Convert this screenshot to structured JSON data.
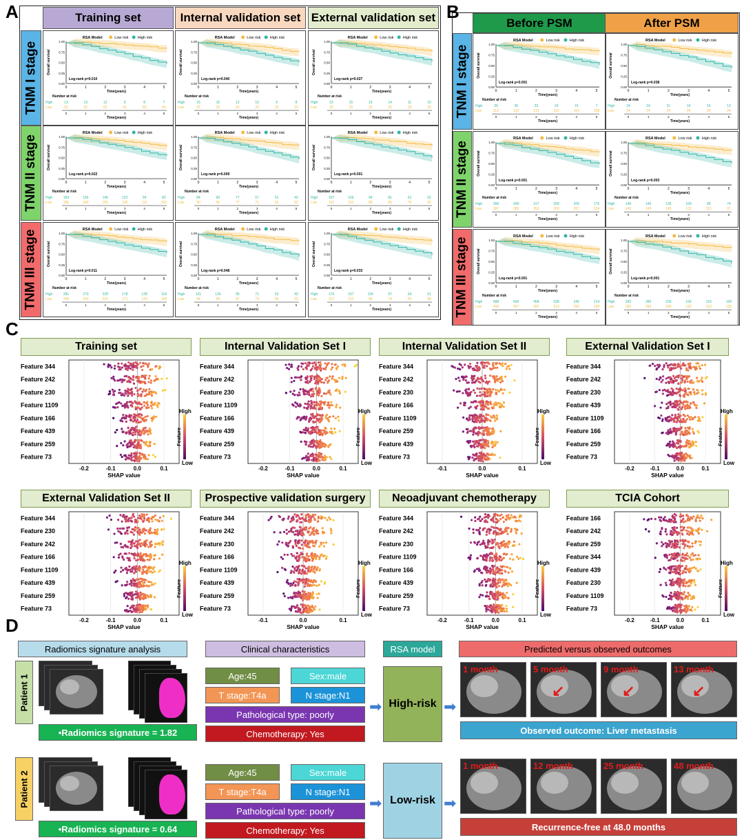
{
  "panels": {
    "a": "A",
    "b": "B",
    "c": "C",
    "d": "D"
  },
  "panelA": {
    "headers": [
      "Training set",
      "Internal validation set",
      "External validation set"
    ],
    "header_colors": [
      "#b7a8d4",
      "#f9d8c0",
      "#e3eccd"
    ],
    "stages": [
      "TNM I stage",
      "TNM II stage",
      "TNM III stage"
    ],
    "stage_colors": [
      "#5ab4e6",
      "#7fd36b",
      "#f26b6b"
    ],
    "pvalues": [
      [
        "Log-rank p=0.010",
        "Log-rank p=0.040",
        "Log-rank p=0.027"
      ],
      [
        "Log-rank p=0.022",
        "Log-rank p=0.009",
        "Log-rank p<0.001"
      ],
      [
        "Log-rank p=0.011",
        "Log-rank p=0.048",
        "Log-rank p=0.033"
      ]
    ],
    "risk_high": [
      [
        "13 13 12 9 8 7",
        "15 15 12 10 9 8",
        "15 15 15 14 11 10"
      ],
      [
        "183 156 146 122 94 82",
        "84 83 77 57 51 42",
        "107 106 94 81 61 52"
      ],
      [
        "281 273 228 178 128 118",
        "131 126 95 71 53 43",
        "176 167 135 97 64 61"
      ]
    ],
    "risk_low": [
      [
        "62 62 62 61 60 60",
        "25 25 24 24 23 22",
        "25 25 25 25 25 25"
      ],
      [
        "186 180 155 136 113 102",
        "90 90 77 71 66 62",
        "101 101 89 80 74 62"
      ],
      [
        "249 243 215 171 120 104",
        "94 90 87 74 59 52",
        "113 112 94 74 63 58"
      ]
    ]
  },
  "panelB": {
    "headers": [
      "Before PSM",
      "After PSM"
    ],
    "header_colors": [
      "#1e9a4a",
      "#f0a046"
    ],
    "stages": [
      "TNM I stage",
      "TNM II stage",
      "TNM III stage"
    ],
    "pvalues": [
      [
        "Log-rank p<0.001",
        "Log-rank p=0.038"
      ],
      [
        "Log-rank p<0.001",
        "Log-rank p=0.003"
      ],
      [
        "Log-rank p<0.001",
        "Log-rank p<0.001"
      ]
    ],
    "risk_high": [
      [
        "39 39 33 24 15 7",
        "24 24 21 19 15 13"
      ],
      [
        "358 349 317 269 206 176",
        "149 146 135 109 89 74"
      ],
      [
        "588 566 458 338 245 214",
        "283 280 230 156 119 100"
      ]
    ],
    "risk_low": [
      [
        "112 112 112 110 110 108",
        "24 24 24 24 24 24"
      ],
      [
        "387 385 353 309 267 234",
        "149 149 145 131 115 97"
      ],
      [
        "456 457 397 313 256 228",
        "283 283 245 192 153 130"
      ]
    ]
  },
  "km_common": {
    "legend_title": "RSA Model",
    "low": "Low risk",
    "high": "High risk",
    "ylabel": "Overall survival",
    "xlabel": "Time(years)",
    "yticks": [
      "0.00",
      "0.25",
      "0.50",
      "0.75",
      "1.00"
    ],
    "xticks": [
      "0",
      "1",
      "2",
      "3",
      "4",
      "5"
    ],
    "nar": "Number at risk",
    "high_lbl": "High",
    "low_lbl": "Low",
    "low_color": "#f5b93f",
    "high_color": "#2fb5a3"
  },
  "panelC": {
    "xlabel": "SHAP value",
    "bar_high": "High",
    "bar_low": "Low",
    "bar_title": "Feature",
    "charts": [
      {
        "title": "Training set",
        "features": [
          "Feature 344",
          "Feature 242",
          "Feature 230",
          "Feature 1109",
          "Feature 166",
          "Feature 439",
          "Feature 259",
          "Feature 73"
        ],
        "xticks": [
          "-0.2",
          "-0.1",
          "0.0",
          "0.1"
        ]
      },
      {
        "title": "Internal Validation Set I",
        "features": [
          "Feature 344",
          "Feature 242",
          "Feature 230",
          "Feature 1109",
          "Feature 166",
          "Feature 439",
          "Feature 259",
          "Feature 73"
        ],
        "xticks": [
          "-0.2",
          "-0.1",
          "0.0",
          "0.1"
        ]
      },
      {
        "title": "Internal Validation Set II",
        "features": [
          "Feature 344",
          "Feature 242",
          "Feature 230",
          "Feature 166",
          "Feature 1109",
          "Feature 259",
          "Feature 439",
          "Feature 73"
        ],
        "xticks": [
          "-0.1",
          "0.0",
          "0.1"
        ]
      },
      {
        "title": "External Validation Set I",
        "features": [
          "Feature 344",
          "Feature 242",
          "Feature 230",
          "Feature 439",
          "Feature 1109",
          "Feature 166",
          "Feature 259",
          "Feature 73"
        ],
        "xticks": [
          "-0.2",
          "-0.1",
          "0.0",
          "0.1"
        ]
      },
      {
        "title": "External Validation Set II",
        "features": [
          "Feature 344",
          "Feature 230",
          "Feature 242",
          "Feature 166",
          "Feature 1109",
          "Feature 439",
          "Feature 259",
          "Feature 73"
        ],
        "xticks": [
          "-0.2",
          "-0.1",
          "0.0",
          "0.1"
        ]
      },
      {
        "title": "Prospective validation surgery",
        "features": [
          "Feature 344",
          "Feature 242",
          "Feature 230",
          "Feature 166",
          "Feature 1109",
          "Feature 439",
          "Feature 259",
          "Feature 73"
        ],
        "xticks": [
          "-0.1",
          "0.0",
          "0.1"
        ]
      },
      {
        "title": "Neoadjuvant chemotherapy",
        "features": [
          "Feature 344",
          "Feature 242",
          "Feature 230",
          "Feature 1109",
          "Feature 166",
          "Feature 439",
          "Feature 259",
          "Feature 73"
        ],
        "xticks": [
          "-0.2",
          "-0.1",
          "0.0",
          "0.1"
        ]
      },
      {
        "title": "TCIA Cohort",
        "features": [
          "Feature 166",
          "Feature 242",
          "Feature 259",
          "Feature 344",
          "Feature 439",
          "Feature 230",
          "Feature 1109",
          "Feature 73"
        ],
        "xticks": [
          "-0.2",
          "-0.1",
          "0.0",
          "0.1"
        ]
      }
    ]
  },
  "panelD": {
    "headers": {
      "radiomics": "Radiomics signature analysis",
      "clinical": "Clinical characteristics",
      "model": "RSA model",
      "outcome": "Predicted versus observed outcomes"
    },
    "patients": [
      {
        "label": "Patient 1",
        "signature": "•Radiomics signature = 1.82",
        "age": "Age:45",
        "sex": "Sex:male",
        "t": "T stage:T4a",
        "n": "N stage:N1",
        "path": "Pathological type: poorly",
        "chemo": "Chemotherapy: Yes",
        "risk": "High-risk",
        "months": [
          "1 month",
          "5 month",
          "9 month",
          "13 month"
        ],
        "outcome": "Observed outcome: Liver metastasis"
      },
      {
        "label": "Patient 2",
        "signature": "•Radiomics signature = 0.64",
        "age": "Age:45",
        "sex": "Sex:male",
        "t": "T stage:T4a",
        "n": "N stage:N1",
        "path": "Pathological type: poorly",
        "chemo": "Chemotherapy: Yes",
        "risk": "Low-risk",
        "months": [
          "1 month",
          "12 month",
          "25 month",
          "48 month"
        ],
        "outcome": "Recurrence-free at 48.0 months"
      }
    ]
  }
}
